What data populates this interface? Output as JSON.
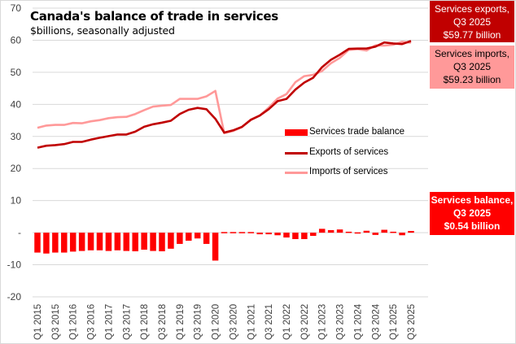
{
  "chart_data": {
    "type": "bar+line",
    "title": "Canada's balance of trade in services",
    "subtitle": "$billions, seasonally adjusted",
    "xlabel": "",
    "ylabel": "",
    "ylim": [
      -20,
      70
    ],
    "yticks": [
      70,
      60,
      50,
      40,
      30,
      20,
      10,
      0,
      -10,
      -20
    ],
    "ytick_labels": [
      "70",
      "60",
      "50",
      "40",
      "30",
      "20",
      "10",
      "-",
      "-10",
      "-20"
    ],
    "grid": true,
    "categories": [
      "Q1 2015",
      "Q2 2015",
      "Q3 2015",
      "Q4 2015",
      "Q1 2016",
      "Q2 2016",
      "Q3 2016",
      "Q4 2016",
      "Q1 2017",
      "Q2 2017",
      "Q3 2017",
      "Q4 2017",
      "Q1 2018",
      "Q2 2018",
      "Q3 2018",
      "Q4 2018",
      "Q1 2019",
      "Q2 2019",
      "Q3 2019",
      "Q4 2019",
      "Q1 2020",
      "Q2 2020",
      "Q3 2020",
      "Q4 2020",
      "Q1 2021",
      "Q2 2021",
      "Q3 2021",
      "Q4 2021",
      "Q1 2022",
      "Q2 2022",
      "Q3 2022",
      "Q4 2022",
      "Q1 2023",
      "Q2 2023",
      "Q3 2023",
      "Q4 2023",
      "Q1 2024",
      "Q2 2024",
      "Q3 2024",
      "Q4 2024",
      "Q1 2025",
      "Q2 2025",
      "Q3 2025"
    ],
    "xtick_labels": [
      "Q1 2015",
      "Q3 2015",
      "Q1 2016",
      "Q3 2016",
      "Q1 2017",
      "Q3 2017",
      "Q1 2018",
      "Q3 2018",
      "Q1 2019",
      "Q3 2019",
      "Q1 2020",
      "Q3 2020",
      "Q1 2021",
      "Q3 2021",
      "Q1 2022",
      "Q3 2022",
      "Q1 2023",
      "Q3 2023",
      "Q1 2024",
      "Q3 2024",
      "Q1 2025",
      "Q3 2025"
    ],
    "series": [
      {
        "name": "Services trade balance",
        "type": "bar",
        "color": "#ff0000",
        "values": [
          -6.2,
          -6.5,
          -6.2,
          -6.2,
          -5.9,
          -5.7,
          -5.5,
          -5.5,
          -5.7,
          -5.5,
          -5.7,
          -5.8,
          -5.3,
          -5.7,
          -5.8,
          -5.0,
          -3.5,
          -2.5,
          -1.8,
          -3.5,
          -8.7,
          0.2,
          0.2,
          0.2,
          0.2,
          -0.5,
          -0.5,
          -0.8,
          -1.5,
          -2.0,
          -2.0,
          -1.0,
          1.2,
          0.8,
          1.0,
          0.3,
          0.1,
          0.6,
          -0.7,
          0.9,
          0.3,
          -0.8,
          0.54
        ]
      },
      {
        "name": "Exports of services",
        "type": "line",
        "color": "#c00000",
        "values": [
          26.5,
          27.1,
          27.3,
          27.6,
          28.3,
          28.3,
          29.0,
          29.6,
          30.1,
          30.6,
          30.6,
          31.5,
          33.0,
          33.8,
          34.3,
          34.9,
          37.0,
          38.3,
          38.9,
          38.5,
          35.5,
          31.2,
          31.9,
          33.0,
          35.2,
          36.5,
          38.5,
          41.0,
          41.7,
          44.6,
          46.8,
          48.3,
          51.6,
          53.9,
          55.5,
          57.3,
          57.4,
          57.4,
          58.0,
          59.3,
          59.0,
          58.8,
          59.77
        ]
      },
      {
        "name": "Imports of services",
        "type": "line",
        "color": "#ff9999",
        "values": [
          32.7,
          33.4,
          33.6,
          33.6,
          34.2,
          34.1,
          34.7,
          35.1,
          35.7,
          36.0,
          36.1,
          37.0,
          38.2,
          39.3,
          39.6,
          39.8,
          41.7,
          41.7,
          41.7,
          42.5,
          44.2,
          31.0,
          31.7,
          32.9,
          35.3,
          36.5,
          39.0,
          41.8,
          43.2,
          46.9,
          48.8,
          49.2,
          50.4,
          52.8,
          54.5,
          57.0,
          57.2,
          56.8,
          58.4,
          58.3,
          58.6,
          59.5,
          59.23
        ]
      }
    ],
    "legend": {
      "placement": "center-right",
      "entries": [
        "Services trade balance",
        "Exports of services",
        "Imports of services"
      ]
    },
    "annotations": [
      {
        "lines": [
          "Services exports,",
          "Q3 2025",
          "$59.77 billion"
        ],
        "color": "#c00000"
      },
      {
        "lines": [
          "Services imports,",
          "Q3 2025",
          "$59.23 billion"
        ],
        "color": "#ff9999"
      },
      {
        "lines": [
          "Services balance,",
          "Q3 2025",
          "$0.54 billion"
        ],
        "color": "#ff0000"
      }
    ]
  }
}
